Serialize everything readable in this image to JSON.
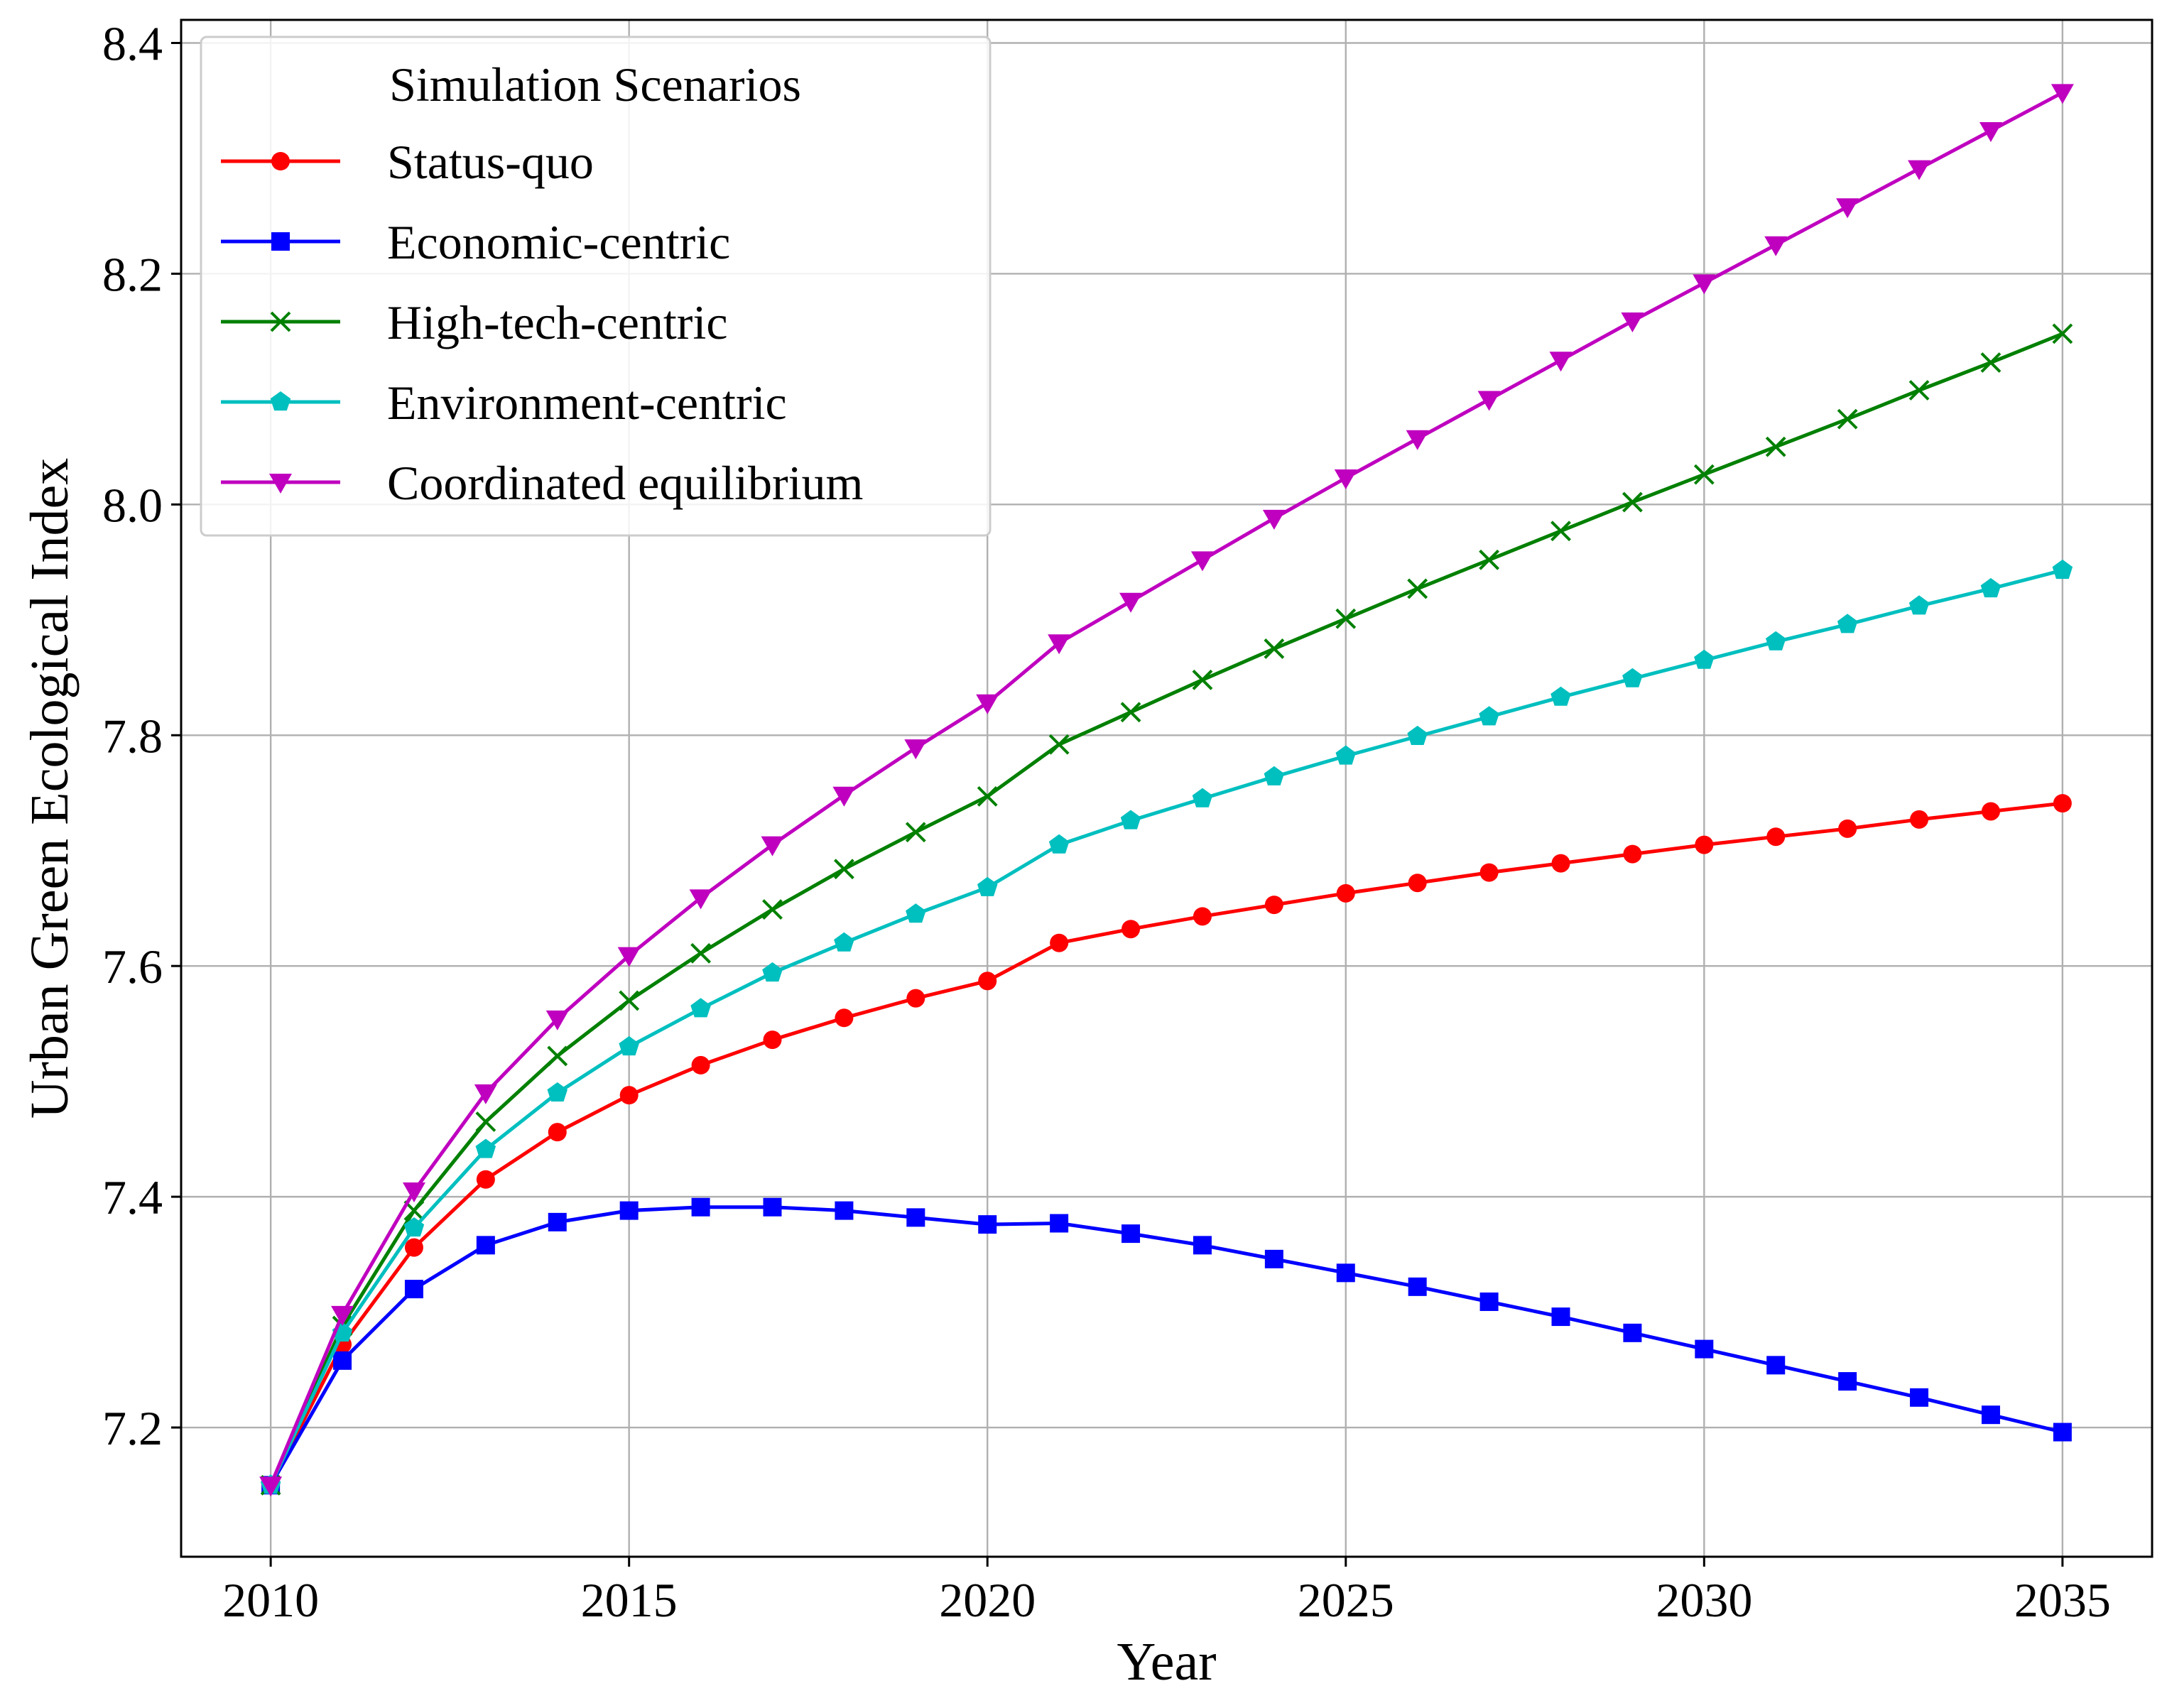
{
  "chart_data": {
    "type": "line",
    "title": "",
    "xlabel": "Year",
    "ylabel": "Urban Green Ecological Index",
    "xlim": [
      2008.75,
      2036.25
    ],
    "ylim": [
      7.088,
      8.42
    ],
    "xticks": [
      2010,
      2015,
      2020,
      2025,
      2030,
      2035
    ],
    "yticks": [
      7.2,
      7.4,
      7.6,
      7.8,
      8.0,
      8.2,
      8.4
    ],
    "xtick_labels": [
      "2010",
      "2015",
      "2020",
      "2025",
      "2030",
      "2035"
    ],
    "ytick_labels": [
      "7.2",
      "7.4",
      "7.6",
      "7.8",
      "8.0",
      "8.2",
      "8.4"
    ],
    "grid": true,
    "legend": {
      "title": "Simulation Scenarios",
      "position": "upper left"
    },
    "x": [
      2010,
      2011,
      2012,
      2013,
      2014,
      2015,
      2016,
      2017,
      2018,
      2019,
      2020,
      2021,
      2022,
      2023,
      2024,
      2025,
      2026,
      2027,
      2028,
      2029,
      2030,
      2031,
      2032,
      2033,
      2034,
      2035
    ],
    "series": [
      {
        "name": "Status-quo",
        "color": "#ff0000",
        "marker": "circle",
        "values": [
          7.15,
          7.272,
          7.356,
          7.415,
          7.456,
          7.488,
          7.514,
          7.536,
          7.555,
          7.572,
          7.587,
          7.62,
          7.632,
          7.643,
          7.653,
          7.663,
          7.672,
          7.681,
          7.689,
          7.697,
          7.705,
          7.712,
          7.719,
          7.727,
          7.734,
          7.741
        ]
      },
      {
        "name": "Economic-centric",
        "color": "#0000ff",
        "marker": "square",
        "values": [
          7.15,
          7.258,
          7.32,
          7.358,
          7.378,
          7.388,
          7.391,
          7.391,
          7.388,
          7.382,
          7.376,
          7.377,
          7.368,
          7.358,
          7.346,
          7.334,
          7.322,
          7.309,
          7.296,
          7.282,
          7.268,
          7.254,
          7.24,
          7.226,
          7.211,
          7.196
        ]
      },
      {
        "name": "High-tech-centric",
        "color": "#008000",
        "marker": "x",
        "values": [
          7.15,
          7.288,
          7.388,
          7.465,
          7.522,
          7.57,
          7.611,
          7.649,
          7.684,
          7.716,
          7.747,
          7.792,
          7.82,
          7.848,
          7.875,
          7.901,
          7.927,
          7.952,
          7.977,
          8.002,
          8.026,
          8.05,
          8.074,
          8.099,
          8.123,
          8.148
        ]
      },
      {
        "name": "Environment-centric",
        "color": "#00bfbf",
        "marker": "pentagon",
        "values": [
          7.15,
          7.282,
          7.373,
          7.441,
          7.49,
          7.53,
          7.563,
          7.594,
          7.62,
          7.645,
          7.668,
          7.705,
          7.726,
          7.745,
          7.764,
          7.782,
          7.799,
          7.816,
          7.833,
          7.849,
          7.865,
          7.881,
          7.896,
          7.912,
          7.927,
          7.943
        ]
      },
      {
        "name": "Coordinated equilibrium",
        "color": "#bf00bf",
        "marker": "triangle-down",
        "values": [
          7.15,
          7.298,
          7.405,
          7.49,
          7.554,
          7.609,
          7.659,
          7.705,
          7.748,
          7.789,
          7.828,
          7.88,
          7.916,
          7.952,
          7.988,
          8.023,
          8.057,
          8.091,
          8.125,
          8.159,
          8.192,
          8.225,
          8.258,
          8.291,
          8.324,
          8.357
        ]
      }
    ]
  }
}
